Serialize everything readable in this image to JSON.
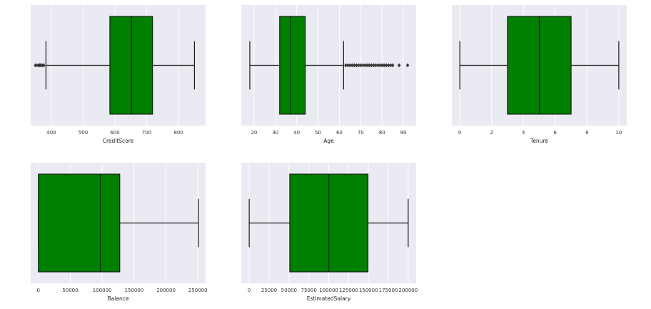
{
  "colors": {
    "panel_background": "#eaeaf2",
    "grid": "#ffffff",
    "box_fill": "#008000",
    "line": "#1a1a1a"
  },
  "chart_data": [
    {
      "type": "box",
      "xlabel": "CreditScore",
      "xlim": [
        335,
        885
      ],
      "ticks": [
        400,
        500,
        600,
        700,
        800
      ],
      "tick_labels": [
        "400",
        "500",
        "600",
        "700",
        "800"
      ],
      "whisker_low": 383,
      "q1": 584,
      "median": 652,
      "q3": 718,
      "whisker_high": 850,
      "outliers": [
        350,
        351,
        358,
        363,
        365,
        367,
        373,
        376
      ]
    },
    {
      "type": "box",
      "xlabel": "Age",
      "xlim": [
        14,
        96
      ],
      "ticks": [
        20,
        30,
        40,
        50,
        60,
        70,
        80,
        90
      ],
      "tick_labels": [
        "20",
        "30",
        "40",
        "50",
        "60",
        "70",
        "80",
        "90"
      ],
      "whisker_low": 18,
      "q1": 32,
      "median": 37,
      "q3": 44,
      "whisker_high": 62,
      "outliers": [
        63,
        64,
        65,
        66,
        67,
        68,
        69,
        70,
        71,
        72,
        73,
        74,
        75,
        76,
        77,
        78,
        79,
        80,
        81,
        82,
        83,
        84,
        85,
        88,
        92
      ]
    },
    {
      "type": "box",
      "xlabel": "Tenure",
      "xlim": [
        -0.5,
        10.5
      ],
      "ticks": [
        0,
        2,
        4,
        6,
        8,
        10
      ],
      "tick_labels": [
        "0",
        "2",
        "4",
        "6",
        "8",
        "10"
      ],
      "whisker_low": 0,
      "q1": 3,
      "median": 5,
      "q3": 7,
      "whisker_high": 10,
      "outliers": []
    },
    {
      "type": "box",
      "xlabel": "Balance",
      "xlim": [
        -12000,
        262000
      ],
      "ticks": [
        0,
        50000,
        100000,
        150000,
        200000,
        250000
      ],
      "tick_labels": [
        "0",
        "50000",
        "100000",
        "150000",
        "200000",
        "250000"
      ],
      "whisker_low": 0,
      "q1": 0,
      "median": 97000,
      "q3": 127500,
      "whisker_high": 250900,
      "outliers": []
    },
    {
      "type": "box",
      "xlabel": "EstimatedSalary",
      "xlim": [
        -10000,
        210000
      ],
      "ticks": [
        0,
        25000,
        50000,
        75000,
        100000,
        125000,
        150000,
        175000,
        200000
      ],
      "tick_labels": [
        "0",
        "25000",
        "50000",
        "75000",
        "100000",
        "125000",
        "150000",
        "175000",
        "200000"
      ],
      "whisker_low": 12,
      "q1": 51000,
      "median": 100200,
      "q3": 149400,
      "whisker_high": 199990,
      "outliers": []
    }
  ]
}
